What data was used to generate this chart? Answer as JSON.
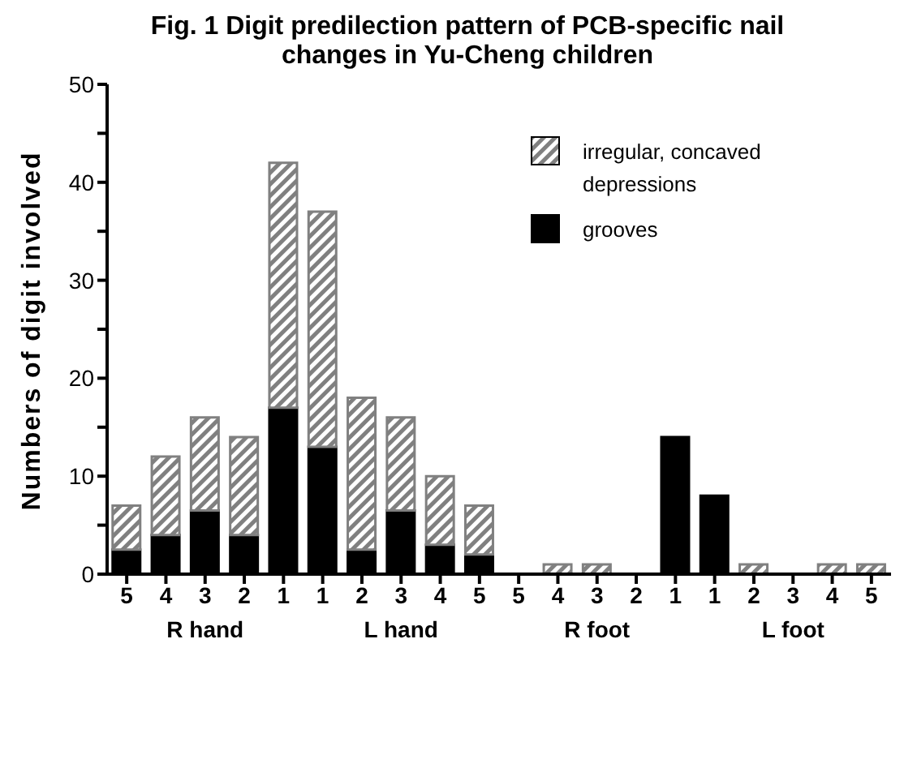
{
  "chart_data": {
    "type": "bar",
    "title": "Fig. 1 Digit predilection pattern of PCB-specific nail changes in Yu-Cheng children",
    "ylabel": "Numbers of digit involved",
    "categories": [
      "5",
      "4",
      "3",
      "2",
      "1",
      "1",
      "2",
      "3",
      "4",
      "5",
      "5",
      "4",
      "3",
      "2",
      "1",
      "1",
      "2",
      "3",
      "4",
      "5"
    ],
    "stacked": true,
    "legend": "top right",
    "ylim": [
      0,
      50
    ],
    "yticks": [
      0,
      {
        "value": 5,
        "label": null
      },
      10,
      {
        "value": 15,
        "label": null
      },
      20,
      {
        "value": 25,
        "label": null
      },
      30,
      {
        "value": 35,
        "label": null
      },
      40,
      {
        "value": 45,
        "label": null
      },
      50
    ],
    "series": [
      {
        "name": "grooves",
        "color": "#000000",
        "values": [
          2.5,
          4,
          6.5,
          4,
          17,
          13,
          2.5,
          6.5,
          3,
          2,
          0,
          0,
          0,
          0,
          14,
          8,
          0,
          0,
          0,
          0
        ]
      },
      {
        "name": "irregular, concaved depressions",
        "color": "#808080",
        "values": [
          4.5,
          8,
          9.5,
          10,
          25,
          24,
          15.5,
          9.5,
          7,
          5,
          0,
          1,
          1,
          0,
          0,
          0,
          1,
          0,
          1,
          1
        ]
      }
    ],
    "annotations": [
      "R hand",
      "L hand",
      "R foot",
      "L foot"
    ]
  }
}
